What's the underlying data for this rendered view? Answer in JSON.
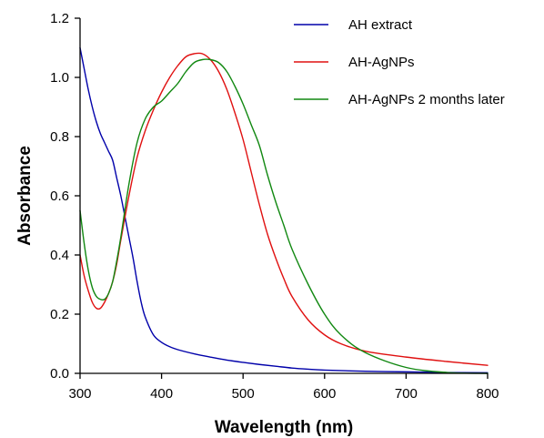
{
  "chart_data": {
    "type": "line",
    "title": "",
    "xlabel": "Wavelength (nm)",
    "ylabel": "Absorbance",
    "xlim": [
      300,
      800
    ],
    "ylim": [
      0,
      1.2
    ],
    "xticks": [
      "300",
      "400",
      "500",
      "600",
      "700",
      "800"
    ],
    "yticks": [
      "0.0",
      "0.2",
      "0.4",
      "0.6",
      "0.8",
      "1.0",
      "1.2"
    ],
    "grid": false,
    "legend_position": "top-right",
    "series": [
      {
        "name": "AH extract",
        "color": "#0000aa",
        "x": [
          300,
          305,
          310,
          315,
          320,
          325,
          330,
          335,
          340,
          345,
          350,
          355,
          360,
          365,
          370,
          375,
          380,
          390,
          400,
          410,
          420,
          440,
          460,
          480,
          500,
          520,
          540,
          560,
          580,
          600,
          650,
          700,
          750,
          800
        ],
        "y": [
          1.1,
          1.03,
          0.96,
          0.9,
          0.85,
          0.81,
          0.78,
          0.75,
          0.72,
          0.66,
          0.6,
          0.53,
          0.46,
          0.39,
          0.31,
          0.24,
          0.19,
          0.13,
          0.105,
          0.09,
          0.08,
          0.066,
          0.055,
          0.045,
          0.037,
          0.03,
          0.024,
          0.018,
          0.014,
          0.011,
          0.007,
          0.005,
          0.003,
          0.002
        ]
      },
      {
        "name": "AH-AgNPs",
        "color": "#e01010",
        "x": [
          300,
          305,
          310,
          315,
          320,
          325,
          330,
          335,
          340,
          345,
          350,
          360,
          370,
          380,
          390,
          400,
          410,
          420,
          430,
          440,
          450,
          460,
          470,
          480,
          490,
          500,
          510,
          520,
          530,
          540,
          550,
          560,
          580,
          600,
          620,
          650,
          700,
          750,
          800
        ],
        "y": [
          0.4,
          0.33,
          0.28,
          0.24,
          0.22,
          0.22,
          0.24,
          0.27,
          0.31,
          0.37,
          0.45,
          0.6,
          0.73,
          0.82,
          0.89,
          0.95,
          1.0,
          1.04,
          1.07,
          1.08,
          1.08,
          1.06,
          1.02,
          0.96,
          0.88,
          0.79,
          0.68,
          0.57,
          0.47,
          0.39,
          0.32,
          0.26,
          0.18,
          0.13,
          0.1,
          0.075,
          0.055,
          0.04,
          0.027
        ]
      },
      {
        "name": "AH-AgNPs 2 months later",
        "color": "#118811",
        "x": [
          300,
          305,
          310,
          315,
          320,
          325,
          330,
          335,
          340,
          345,
          350,
          360,
          370,
          380,
          390,
          400,
          410,
          420,
          430,
          440,
          450,
          460,
          470,
          480,
          490,
          500,
          510,
          520,
          530,
          540,
          550,
          560,
          580,
          600,
          620,
          650,
          700,
          750,
          800
        ],
        "y": [
          0.55,
          0.44,
          0.35,
          0.29,
          0.26,
          0.25,
          0.25,
          0.27,
          0.31,
          0.38,
          0.46,
          0.64,
          0.78,
          0.86,
          0.9,
          0.92,
          0.95,
          0.98,
          1.02,
          1.05,
          1.06,
          1.06,
          1.05,
          1.02,
          0.97,
          0.91,
          0.84,
          0.77,
          0.67,
          0.58,
          0.5,
          0.42,
          0.3,
          0.2,
          0.13,
          0.07,
          0.02,
          0.003,
          0.0
        ]
      }
    ]
  }
}
